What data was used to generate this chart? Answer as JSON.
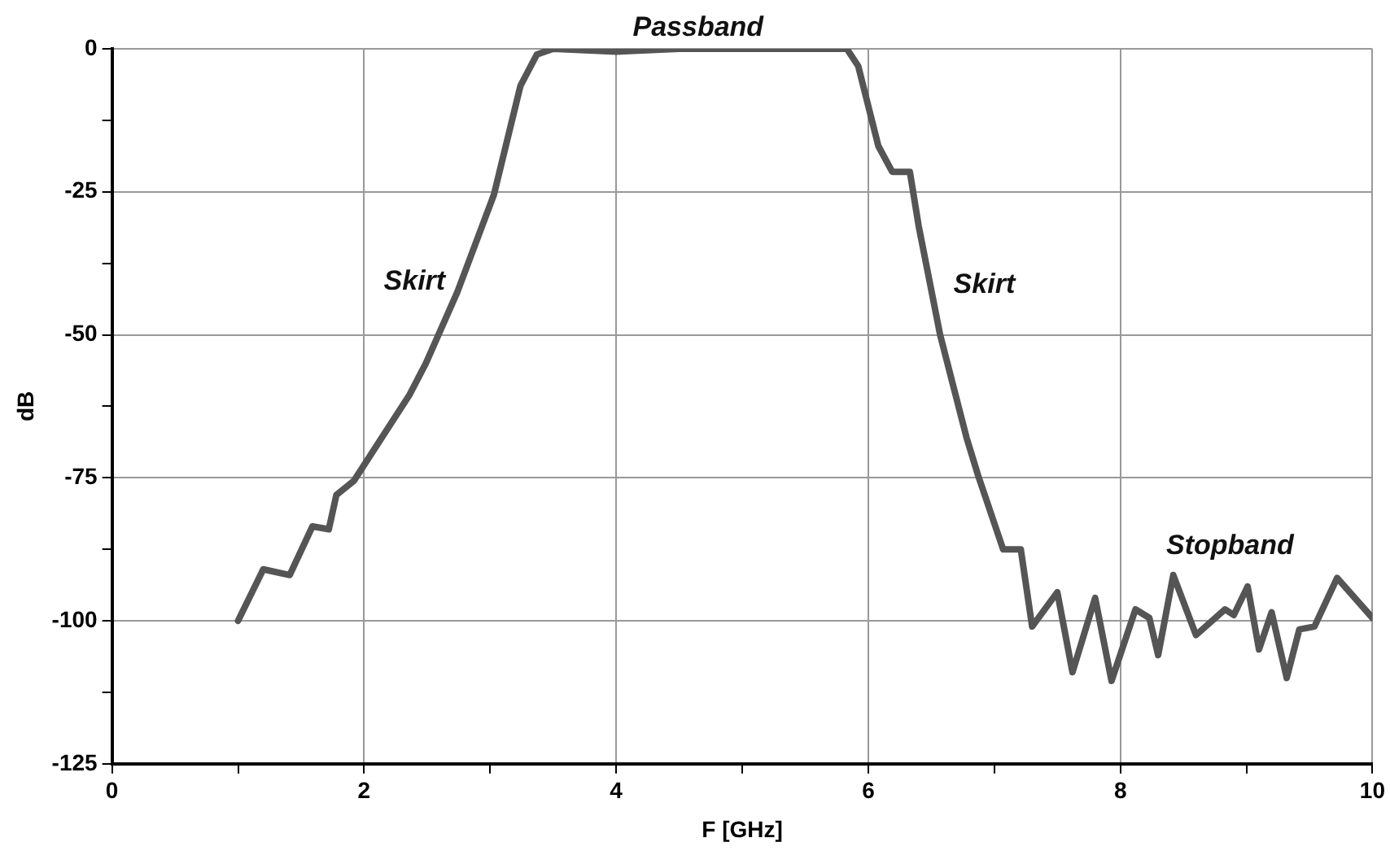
{
  "chart_data": {
    "type": "line",
    "xlabel": "F [GHz]",
    "ylabel": "dB",
    "series": [
      {
        "color": "#555555",
        "x": [
          1.0,
          1.2,
          1.41,
          1.59,
          1.72,
          1.78,
          1.92,
          2.36,
          2.49,
          2.74,
          3.03,
          3.24,
          3.37,
          3.5,
          4.0,
          4.5,
          5.0,
          5.5,
          5.83,
          5.92,
          6.08,
          6.19,
          6.33,
          6.4,
          6.57,
          6.78,
          6.87,
          7.07,
          7.21,
          7.3,
          7.5,
          7.62,
          7.8,
          7.93,
          8.12,
          8.23,
          8.3,
          8.42,
          8.6,
          8.83,
          8.9,
          9.01,
          9.1,
          9.2,
          9.32,
          9.42,
          9.54,
          9.72,
          10.0
        ],
        "values": [
          -100,
          -91,
          -92,
          -83.5,
          -84,
          -78,
          -75.5,
          -60.5,
          -55,
          -42.5,
          -25.5,
          -6.5,
          -1,
          0,
          -0.5,
          0,
          0,
          0,
          0,
          -3,
          -17,
          -21.5,
          -21.5,
          -31,
          -50,
          -68,
          -74.5,
          -87.5,
          -87.5,
          -101,
          -95,
          -109,
          -96,
          -110.5,
          -98,
          -99.5,
          -106,
          -92,
          -102.5,
          -98,
          -99,
          -94,
          -105,
          -98.5,
          -110,
          -101.5,
          -101,
          -92.5,
          -99.5
        ]
      }
    ],
    "xlim": [
      0,
      10
    ],
    "xticks": [
      0,
      {
        "value": 1,
        "label": null
      },
      2,
      {
        "value": 3,
        "label": null
      },
      4,
      {
        "value": 5,
        "label": null
      },
      6,
      {
        "value": 7,
        "label": null
      },
      8,
      {
        "value": 9,
        "label": null
      },
      10
    ],
    "ylim": [
      -125,
      0
    ],
    "yticks": [
      -125,
      {
        "value": -112.5,
        "label": null
      },
      -100,
      {
        "value": -87.5,
        "label": null
      },
      -75,
      {
        "value": -62.5,
        "label": null
      },
      -50,
      {
        "value": -37.5,
        "label": null
      },
      -25,
      {
        "value": -12.5,
        "label": null
      },
      0
    ],
    "grid": true,
    "legend": false,
    "marker": "none",
    "line_style": "solid",
    "annotations": [
      {
        "text": "Passband",
        "x": 4.65,
        "y": 0
      },
      "Skirt",
      "Skirt",
      "Stopband"
    ]
  }
}
